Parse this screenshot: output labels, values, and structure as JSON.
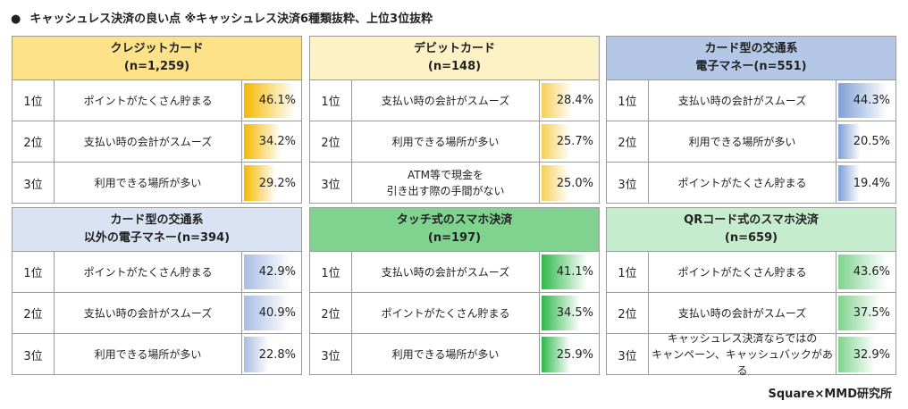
{
  "title": "キャッシュレス決済の良い点 ※キャッシュレス決済6種類抜粋、上位3位抜粋",
  "footer": "Square×MMD研究所",
  "chart_data": [
    {
      "type": "table",
      "title_line1": "クレジットカード",
      "title_line2": "(n=1,259)",
      "head_color": "#fde28a",
      "bar_color": "#f5b800",
      "rows": [
        {
          "rank": "1位",
          "label": "ポイントがたくさん貯まる",
          "value": 46.1,
          "value_label": "46.1%"
        },
        {
          "rank": "2位",
          "label": "支払い時の会計がスムーズ",
          "value": 34.2,
          "value_label": "34.2%"
        },
        {
          "rank": "3位",
          "label": "利用できる場所が多い",
          "value": 29.2,
          "value_label": "29.2%"
        }
      ]
    },
    {
      "type": "table",
      "title_line1": "デビットカード",
      "title_line2": "(n=148)",
      "head_color": "#fdf1c6",
      "bar_color": "#f5cf57",
      "rows": [
        {
          "rank": "1位",
          "label": "支払い時の会計がスムーズ",
          "value": 28.4,
          "value_label": "28.4%"
        },
        {
          "rank": "2位",
          "label": "利用できる場所が多い",
          "value": 25.7,
          "value_label": "25.7%"
        },
        {
          "rank": "3位",
          "label": "ATM等で現金を\n引き出す際の手間がない",
          "value": 25.0,
          "value_label": "25.0%"
        }
      ]
    },
    {
      "type": "table",
      "title_line1": "カード型の交通系",
      "title_line2": "電子マネー(n=551)",
      "head_color": "#b4c7e7",
      "bar_color": "#7f9fd6",
      "rows": [
        {
          "rank": "1位",
          "label": "支払い時の会計がスムーズ",
          "value": 44.3,
          "value_label": "44.3%"
        },
        {
          "rank": "2位",
          "label": "利用できる場所が多い",
          "value": 20.5,
          "value_label": "20.5%"
        },
        {
          "rank": "3位",
          "label": "ポイントがたくさん貯まる",
          "value": 19.4,
          "value_label": "19.4%"
        }
      ]
    },
    {
      "type": "table",
      "title_line1": "カード型の交通系",
      "title_line2": "以外の電子マネー(n=394)",
      "head_color": "#dae3f3",
      "bar_color": "#a9bde3",
      "rows": [
        {
          "rank": "1位",
          "label": "ポイントがたくさん貯まる",
          "value": 42.9,
          "value_label": "42.9%"
        },
        {
          "rank": "2位",
          "label": "支払い時の会計がスムーズ",
          "value": 40.9,
          "value_label": "40.9%"
        },
        {
          "rank": "3位",
          "label": "利用できる場所が多い",
          "value": 22.8,
          "value_label": "22.8%"
        }
      ]
    },
    {
      "type": "table",
      "title_line1": "タッチ式のスマホ決済",
      "title_line2": "(n=197)",
      "head_color": "#7fd38f",
      "bar_color": "#2fb84a",
      "rows": [
        {
          "rank": "1位",
          "label": "支払い時の会計がスムーズ",
          "value": 41.1,
          "value_label": "41.1%"
        },
        {
          "rank": "2位",
          "label": "ポイントがたくさん貯まる",
          "value": 34.5,
          "value_label": "34.5%"
        },
        {
          "rank": "3位",
          "label": "利用できる場所が多い",
          "value": 25.9,
          "value_label": "25.9%"
        }
      ]
    },
    {
      "type": "table",
      "title_line1": "QRコード式のスマホ決済",
      "title_line2": "(n=659)",
      "head_color": "#c6ecce",
      "bar_color": "#7fd38f",
      "rows": [
        {
          "rank": "1位",
          "label": "ポイントがたくさん貯まる",
          "value": 43.6,
          "value_label": "43.6%"
        },
        {
          "rank": "2位",
          "label": "支払い時の会計がスムーズ",
          "value": 37.5,
          "value_label": "37.5%"
        },
        {
          "rank": "3位",
          "label": "キャッシュレス決済ならではの\nキャンペーン、キャッシュバックがある",
          "value": 32.9,
          "value_label": "32.9%"
        }
      ]
    }
  ]
}
